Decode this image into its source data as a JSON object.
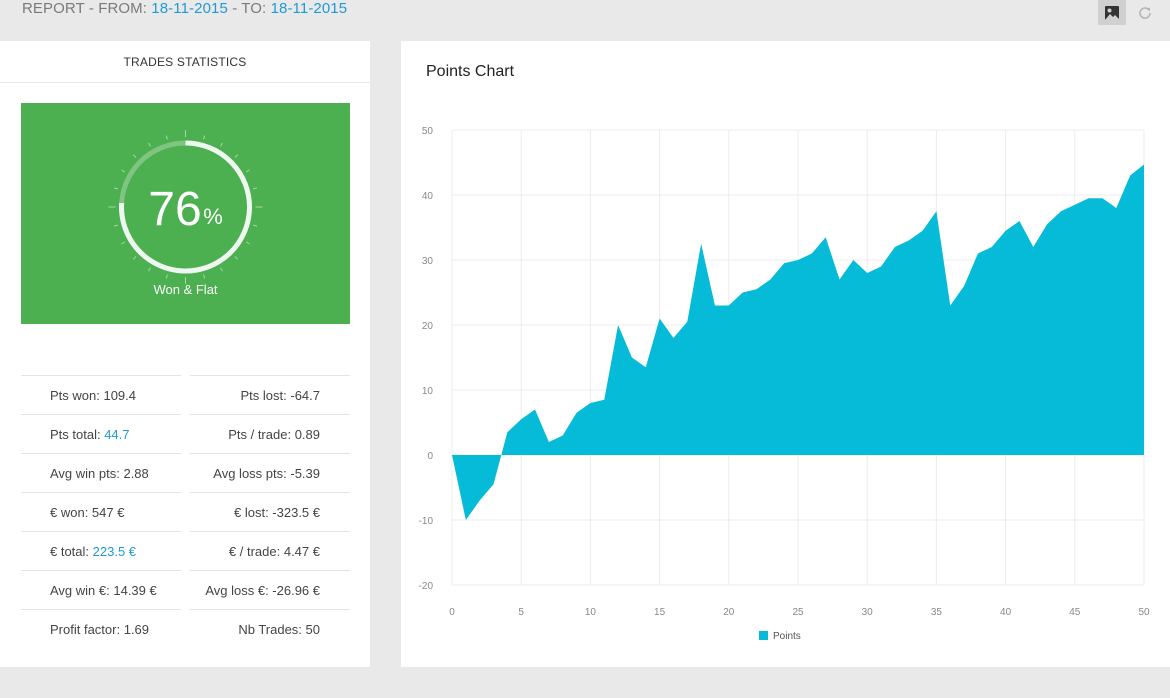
{
  "header": {
    "report_prefix": "REPORT - FROM: ",
    "from_date": "18-11-2015",
    "to_prefix": " - TO: ",
    "to_date": "18-11-2015",
    "buttons": [
      {
        "icon": "image-icon",
        "active": true
      },
      {
        "icon": "refresh-icon",
        "active": false
      }
    ]
  },
  "trades_statistics": {
    "title": "TRADES STATISTICS",
    "gauge": {
      "value_number": "76",
      "value_unit": "%",
      "fraction": 0.76,
      "label": "Won & Flat",
      "bg_color": "#4caf50"
    },
    "left_stats": [
      {
        "label": "Pts won: ",
        "value": "109.4",
        "highlight": false
      },
      {
        "label": "Pts total: ",
        "value": "44.7",
        "highlight": true
      },
      {
        "label": "Avg win pts: ",
        "value": "2.88",
        "highlight": false
      },
      {
        "label": "€ won: ",
        "value": "547 €",
        "highlight": false
      },
      {
        "label": "€ total: ",
        "value": "223.5 €",
        "highlight": true
      },
      {
        "label": "Avg win €: ",
        "value": "14.39 €",
        "highlight": false
      },
      {
        "label": "Profit factor: ",
        "value": "1.69",
        "highlight": false
      }
    ],
    "right_stats": [
      {
        "label": "Pts lost: ",
        "value": "-64.7",
        "highlight": false
      },
      {
        "label": "Pts / trade: ",
        "value": "0.89",
        "highlight": false
      },
      {
        "label": "Avg loss pts: ",
        "value": "-5.39",
        "highlight": false
      },
      {
        "label": "€ lost: ",
        "value": "-323.5 €",
        "highlight": false
      },
      {
        "label": "€ / trade: ",
        "value": "4.47 €",
        "highlight": false
      },
      {
        "label": "Avg loss €: ",
        "value": "-26.96 €",
        "highlight": false
      },
      {
        "label": "Nb Trades: ",
        "value": "50",
        "highlight": false
      }
    ]
  },
  "chart_data": {
    "type": "area",
    "title": "Points Chart",
    "xlabel": "",
    "ylabel": "",
    "xlim": [
      0,
      50
    ],
    "ylim": [
      -20,
      50
    ],
    "x_ticks": [
      0,
      5,
      10,
      15,
      20,
      25,
      30,
      35,
      40,
      45,
      50
    ],
    "y_ticks": [
      -20,
      -10,
      0,
      10,
      20,
      30,
      40,
      50
    ],
    "grid": true,
    "legend_position": "bottom-center",
    "series": [
      {
        "name": "Points",
        "color": "#06bbd8",
        "x": [
          0,
          1,
          2,
          3,
          4,
          5,
          6,
          7,
          8,
          9,
          10,
          11,
          12,
          13,
          14,
          15,
          16,
          17,
          18,
          19,
          20,
          21,
          22,
          23,
          24,
          25,
          26,
          27,
          28,
          29,
          30,
          31,
          32,
          33,
          34,
          35,
          36,
          37,
          38,
          39,
          40,
          41,
          42,
          43,
          44,
          45,
          46,
          47,
          48,
          49,
          50
        ],
        "values": [
          0,
          -10,
          -7,
          -4.5,
          3.5,
          5.5,
          7,
          2,
          3,
          6.5,
          8,
          8.5,
          20,
          15,
          13.5,
          21,
          18,
          20.5,
          32.5,
          23,
          23,
          25,
          25.5,
          27,
          29.5,
          30,
          31,
          33.5,
          27,
          30,
          28,
          29,
          32,
          33,
          34.5,
          37.5,
          23,
          26,
          31,
          32,
          34.5,
          36,
          32,
          35.5,
          37.5,
          38.5,
          39.5,
          39.5,
          38,
          43,
          44.7
        ]
      }
    ]
  }
}
